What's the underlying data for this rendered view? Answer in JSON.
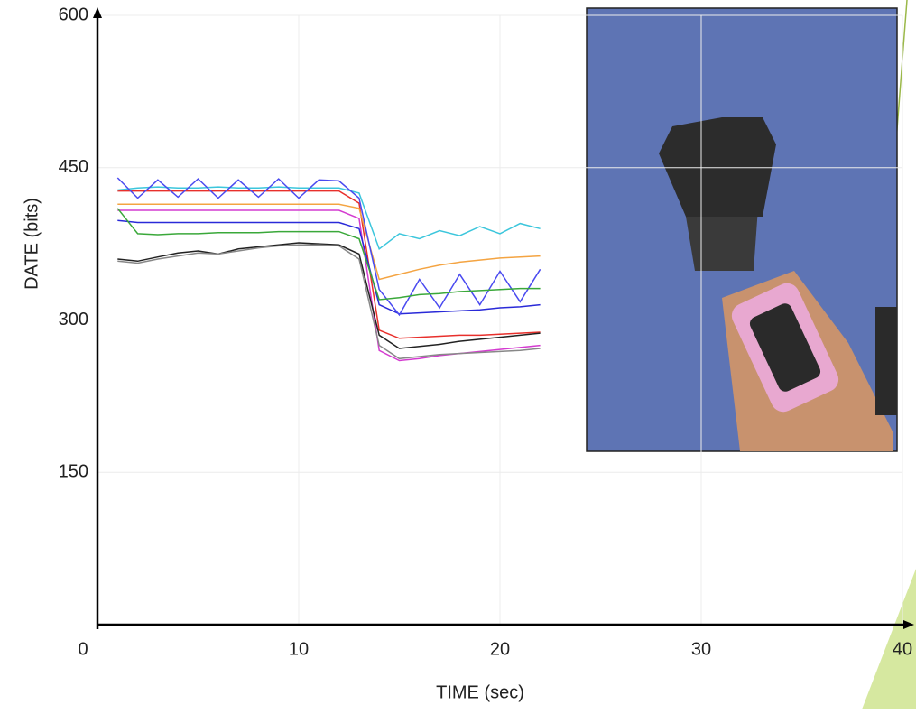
{
  "chart_data": {
    "type": "line",
    "x_label": "TIME (sec)",
    "y_label": "DATE (bits)",
    "xlim": [
      0,
      40
    ],
    "xticks": [
      0,
      10,
      20,
      30,
      40
    ],
    "ylim": [
      0,
      600
    ],
    "yticks": [
      150,
      300,
      450,
      600
    ],
    "grid": true,
    "x": [
      1,
      2,
      3,
      4,
      5,
      6,
      7,
      8,
      9,
      10,
      11,
      12,
      13,
      14,
      15,
      16,
      17,
      18,
      19,
      20,
      21,
      22
    ],
    "series": [
      {
        "color": "#e8302c",
        "values": [
          427,
          427,
          427,
          427,
          427,
          427,
          427,
          427,
          427,
          427,
          427,
          427,
          415,
          290,
          282,
          283,
          284,
          285,
          285,
          286,
          287,
          288
        ]
      },
      {
        "color": "#3cc6dc",
        "values": [
          428,
          430,
          431,
          430,
          430,
          431,
          430,
          430,
          431,
          430,
          430,
          430,
          425,
          370,
          385,
          380,
          388,
          383,
          392,
          385,
          395,
          390
        ]
      },
      {
        "color": "#f4a442",
        "values": [
          414,
          414,
          414,
          414,
          414,
          414,
          414,
          414,
          414,
          414,
          414,
          414,
          410,
          340,
          345,
          350,
          354,
          357,
          359,
          361,
          362,
          363
        ]
      },
      {
        "color": "#d43bd0",
        "values": [
          408,
          408,
          408,
          408,
          408,
          408,
          408,
          408,
          408,
          408,
          408,
          408,
          400,
          270,
          260,
          262,
          265,
          267,
          269,
          271,
          273,
          275
        ]
      },
      {
        "color": "#2a2ad8",
        "values": [
          398,
          396,
          396,
          396,
          396,
          396,
          396,
          396,
          396,
          396,
          396,
          396,
          390,
          315,
          306,
          307,
          308,
          309,
          310,
          312,
          313,
          315
        ]
      },
      {
        "color": "#4a4af0",
        "values": [
          440,
          420,
          438,
          421,
          439,
          420,
          438,
          421,
          439,
          420,
          438,
          437,
          420,
          330,
          305,
          340,
          312,
          345,
          315,
          348,
          318,
          350
        ]
      },
      {
        "color": "#3aa83a",
        "values": [
          410,
          385,
          384,
          385,
          385,
          386,
          386,
          386,
          387,
          387,
          387,
          387,
          380,
          320,
          322,
          325,
          326,
          328,
          329,
          330,
          331,
          331
        ]
      },
      {
        "color": "#222222",
        "values": [
          360,
          358,
          362,
          366,
          368,
          365,
          370,
          372,
          374,
          376,
          375,
          374,
          365,
          285,
          272,
          274,
          276,
          279,
          281,
          283,
          285,
          287
        ]
      },
      {
        "color": "#888888",
        "values": [
          358,
          356,
          360,
          363,
          366,
          365,
          368,
          371,
          373,
          374,
          374,
          373,
          360,
          275,
          262,
          264,
          266,
          267,
          268,
          269,
          270,
          272
        ]
      }
    ]
  }
}
